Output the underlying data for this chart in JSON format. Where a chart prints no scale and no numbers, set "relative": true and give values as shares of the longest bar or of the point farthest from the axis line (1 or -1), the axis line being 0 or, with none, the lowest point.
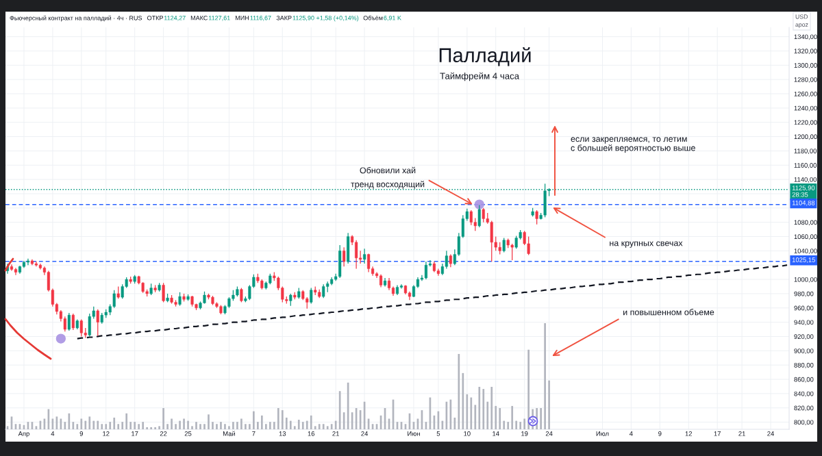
{
  "chart_data": [
    {
      "type": "candlestick",
      "title": "Палладий",
      "subtitle": "Таймфрейм 4 часа",
      "ylabel": "USD\napoz",
      "annotations": [
        "Фьючерсный контракт на палладий · 4ч · RUS",
        "ОТКР",
        "1124,27",
        "МАКС",
        "1127,61",
        "МИН",
        "1116,67",
        "ЗАКР",
        "1125,90 +1,58 (+0,14%)",
        "Объём",
        "6,91 K",
        {
          "text": "Обновили хай\nтренд восходящий",
          "y": 1105
        },
        "если закрепляемся, то летим\nс большей вероятностью выше",
        "на крупных свечах"
      ],
      "categories": [
        null,
        null,
        null,
        null,
        "Апр",
        null,
        null,
        null,
        null,
        null,
        null,
        "4",
        null,
        null,
        null,
        null,
        null,
        null,
        "9",
        null,
        null,
        null,
        null,
        null,
        "12",
        null,
        null,
        null,
        null,
        null,
        null,
        "17",
        null,
        null,
        null,
        null,
        null,
        null,
        "22",
        null,
        null,
        null,
        null,
        null,
        "25",
        null,
        null,
        null,
        null,
        null,
        null,
        null,
        null,
        null,
        "Май",
        null,
        null,
        null,
        null,
        null,
        "7",
        null,
        null,
        null,
        null,
        null,
        null,
        "13",
        null,
        null,
        null,
        null,
        null,
        null,
        "16",
        null,
        null,
        null,
        null,
        null,
        "21",
        null,
        null,
        null,
        null,
        null,
        null,
        "24",
        null,
        null,
        null,
        null,
        null,
        null,
        null,
        null,
        null,
        null,
        null,
        "Июн",
        null,
        null,
        null,
        null,
        null,
        "5",
        null,
        null,
        null,
        null,
        null,
        null,
        "10",
        null,
        null,
        null,
        null,
        null,
        null,
        "14",
        null,
        null,
        null,
        null,
        null,
        null,
        "19",
        null,
        null,
        null,
        null,
        null,
        "24",
        null,
        null,
        null,
        null,
        null,
        null,
        null,
        null,
        null,
        null,
        null,
        null,
        "Июл",
        null,
        null,
        null,
        null,
        null,
        null,
        "4",
        null,
        null,
        null,
        null,
        null,
        null,
        "9",
        null,
        null,
        null,
        null,
        null,
        null,
        "12",
        null,
        null,
        null,
        null,
        null,
        null,
        "17",
        null,
        null,
        null,
        null,
        null,
        "21",
        null,
        null,
        null,
        null,
        null,
        null,
        "24",
        null,
        null,
        null,
        null
      ],
      "ohlc": [
        [
          1012,
          1022,
          1008,
          1018
        ],
        [
          1018,
          1021,
          1012,
          1014
        ],
        [
          1014,
          1016,
          1006,
          1010
        ],
        [
          1010,
          1019,
          1008,
          1018
        ],
        [
          1018,
          1026,
          1016,
          1024
        ],
        [
          1024,
          1029,
          1020,
          1026
        ],
        [
          1026,
          1028,
          1020,
          1022
        ],
        [
          1022,
          1025,
          1018,
          1020
        ],
        [
          1020,
          1022,
          1014,
          1016
        ],
        [
          1016,
          1018,
          1006,
          1010
        ],
        [
          1010,
          1012,
          983,
          985
        ],
        [
          985,
          987,
          962,
          965
        ],
        [
          965,
          967,
          951,
          955
        ],
        [
          955,
          957,
          941,
          945
        ],
        [
          945,
          948,
          927,
          930
        ],
        [
          930,
          953,
          928,
          950
        ],
        [
          950,
          952,
          929,
          932
        ],
        [
          932,
          944,
          930,
          942
        ],
        [
          942,
          944,
          920,
          925
        ],
        [
          925,
          932,
          918,
          922
        ],
        [
          922,
          952,
          920,
          948
        ],
        [
          948,
          962,
          945,
          956
        ],
        [
          956,
          958,
          921,
          940
        ],
        [
          940,
          953,
          938,
          950
        ],
        [
          950,
          958,
          946,
          954
        ],
        [
          954,
          965,
          950,
          962
        ],
        [
          962,
          985,
          960,
          980
        ],
        [
          980,
          990,
          973,
          975
        ],
        [
          975,
          993,
          973,
          990
        ],
        [
          990,
          1003,
          988,
          1000
        ],
        [
          1000,
          1004,
          994,
          997
        ],
        [
          997,
          1006,
          994,
          1004
        ],
        [
          1004,
          1005,
          993,
          995
        ],
        [
          995,
          996,
          981,
          983
        ],
        [
          983,
          986,
          976,
          980
        ],
        [
          980,
          994,
          978,
          988
        ],
        [
          988,
          992,
          982,
          985
        ],
        [
          985,
          995,
          983,
          992
        ],
        [
          992,
          995,
          968,
          970
        ],
        [
          970,
          980,
          968,
          974
        ],
        [
          974,
          978,
          966,
          968
        ],
        [
          968,
          971,
          962,
          965
        ],
        [
          965,
          982,
          963,
          976
        ],
        [
          976,
          980,
          969,
          972
        ],
        [
          972,
          979,
          970,
          976
        ],
        [
          976,
          977,
          962,
          965
        ],
        [
          965,
          966,
          957,
          960
        ],
        [
          960,
          969,
          958,
          967
        ],
        [
          967,
          983,
          966,
          978
        ],
        [
          978,
          980,
          972,
          975
        ],
        [
          975,
          977,
          964,
          966
        ],
        [
          966,
          968,
          960,
          962
        ],
        [
          962,
          964,
          951,
          953
        ],
        [
          953,
          964,
          951,
          962
        ],
        [
          962,
          975,
          960,
          973
        ],
        [
          973,
          985,
          970,
          978
        ],
        [
          978,
          990,
          976,
          986
        ],
        [
          986,
          988,
          968,
          970
        ],
        [
          970,
          976,
          968,
          973
        ],
        [
          973,
          992,
          971,
          990
        ],
        [
          990,
          1007,
          988,
          1003
        ],
        [
          1003,
          1008,
          995,
          998
        ],
        [
          998,
          1000,
          986,
          988
        ],
        [
          988,
          997,
          986,
          995
        ],
        [
          995,
          1008,
          993,
          1005
        ],
        [
          1005,
          1010,
          998,
          1002
        ],
        [
          1002,
          1004,
          985,
          988
        ],
        [
          988,
          990,
          968,
          972
        ],
        [
          972,
          976,
          966,
          970
        ],
        [
          970,
          980,
          963,
          978
        ],
        [
          978,
          982,
          972,
          975
        ],
        [
          975,
          988,
          973,
          983
        ],
        [
          983,
          985,
          971,
          973
        ],
        [
          973,
          975,
          959,
          968
        ],
        [
          968,
          988,
          966,
          985
        ],
        [
          985,
          990,
          978,
          982
        ],
        [
          982,
          986,
          974,
          976
        ],
        [
          976,
          993,
          974,
          990
        ],
        [
          990,
          997,
          982,
          994
        ],
        [
          994,
          1003,
          992,
          1000
        ],
        [
          1000,
          1008,
          998,
          1004
        ],
        [
          1004,
          1048,
          1002,
          1040
        ],
        [
          1040,
          1045,
          1018,
          1025
        ],
        [
          1025,
          1065,
          1022,
          1060
        ],
        [
          1060,
          1062,
          1048,
          1052
        ],
        [
          1052,
          1055,
          1015,
          1030
        ],
        [
          1030,
          1040,
          1022,
          1028
        ],
        [
          1028,
          1043,
          1022,
          1035
        ],
        [
          1035,
          1036,
          1010,
          1015
        ],
        [
          1015,
          1018,
          1005,
          1008
        ],
        [
          1008,
          1010,
          1002,
          1005
        ],
        [
          1005,
          1007,
          989,
          992
        ],
        [
          992,
          1002,
          990,
          998
        ],
        [
          998,
          1002,
          985,
          988
        ],
        [
          988,
          990,
          977,
          980
        ],
        [
          980,
          992,
          978,
          989
        ],
        [
          989,
          993,
          987,
          991
        ],
        [
          991,
          992,
          979,
          981
        ],
        [
          981,
          983,
          971,
          976
        ],
        [
          976,
          992,
          975,
          990
        ],
        [
          990,
          1003,
          988,
          1000
        ],
        [
          1000,
          1006,
          998,
          1002
        ],
        [
          1002,
          1025,
          1000,
          1020
        ],
        [
          1020,
          1027,
          1018,
          1022
        ],
        [
          1022,
          1025,
          1010,
          1012
        ],
        [
          1012,
          1015,
          1005,
          1008
        ],
        [
          1008,
          1022,
          1006,
          1018
        ],
        [
          1018,
          1040,
          1015,
          1033
        ],
        [
          1033,
          1035,
          1017,
          1022
        ],
        [
          1022,
          1042,
          1020,
          1035
        ],
        [
          1035,
          1065,
          1033,
          1060
        ],
        [
          1060,
          1090,
          1058,
          1085
        ],
        [
          1085,
          1099,
          1082,
          1095
        ],
        [
          1095,
          1097,
          1076,
          1080
        ],
        [
          1080,
          1086,
          1068,
          1075
        ],
        [
          1075,
          1104,
          1073,
          1098
        ],
        [
          1098,
          1100,
          1080,
          1085
        ],
        [
          1085,
          1093,
          1078,
          1080
        ],
        [
          1080,
          1082,
          1025,
          1052
        ],
        [
          1052,
          1060,
          1040,
          1045
        ],
        [
          1045,
          1052,
          1035,
          1040
        ],
        [
          1040,
          1058,
          1038,
          1055
        ],
        [
          1055,
          1057,
          1044,
          1048
        ],
        [
          1048,
          1050,
          1027,
          1045
        ],
        [
          1045,
          1061,
          1043,
          1058
        ],
        [
          1058,
          1069,
          1056,
          1066
        ],
        [
          1066,
          1068,
          1048,
          1050
        ],
        [
          1050,
          1060,
          1034,
          1036
        ],
        [
          1090,
          1100,
          1088,
          1095
        ],
        [
          1095,
          1097,
          1077,
          1085
        ],
        [
          1085,
          1093,
          1084,
          1090
        ],
        [
          1090,
          1134,
          1087,
          1124
        ],
        [
          1124.27,
          1127.61,
          1116.67,
          1125.9
        ],
        null,
        null,
        null,
        null,
        null,
        null,
        null,
        null,
        null,
        null,
        null,
        null,
        null,
        null,
        null,
        null,
        null,
        null,
        null,
        null,
        null,
        null,
        null,
        null,
        null,
        null,
        null,
        null,
        null,
        null,
        null,
        null,
        null,
        null,
        null,
        null,
        null,
        null,
        null,
        null,
        null,
        null,
        null,
        null,
        null,
        null,
        null,
        null,
        null,
        null,
        null,
        null,
        null,
        null,
        null,
        null,
        null,
        null
      ],
      "colors": [
        "#089981",
        "#f23645",
        "#f23645",
        "#089981",
        "#089981",
        "#089981",
        "#f23645",
        "#f23645",
        "#f23645",
        "#f23645",
        "#f23645",
        "#f23645",
        "#f23645",
        "#f23645",
        "#f23645",
        "#089981",
        "#f23645",
        "#089981",
        "#f23645",
        "#f23645",
        "#089981",
        "#089981",
        "#f23645",
        "#089981",
        "#089981",
        "#089981",
        "#089981",
        "#f23645",
        "#089981",
        "#089981",
        "#f23645",
        "#089981",
        "#f23645",
        "#f23645",
        "#f23645",
        "#089981",
        "#f23645",
        "#089981",
        "#f23645",
        "#089981",
        "#f23645",
        "#f23645",
        "#089981",
        "#f23645",
        "#089981",
        "#f23645",
        "#f23645",
        "#089981",
        "#089981",
        "#f23645",
        "#f23645",
        "#f23645",
        "#f23645",
        "#089981",
        "#089981",
        "#089981",
        "#089981",
        "#f23645",
        "#089981",
        "#089981",
        "#089981",
        "#f23645",
        "#f23645",
        "#089981",
        "#089981",
        "#f23645",
        "#f23645",
        "#f23645",
        "#f23645",
        "#089981",
        "#f23645",
        "#089981",
        "#f23645",
        "#f23645",
        "#089981",
        "#f23645",
        "#f23645",
        "#089981",
        "#089981",
        "#089981",
        "#089981",
        "#089981",
        "#f23645",
        "#089981",
        "#f23645",
        "#f23645",
        "#f23645",
        "#089981",
        "#f23645",
        "#f23645",
        "#f23645",
        "#f23645",
        "#089981",
        "#f23645",
        "#f23645",
        "#089981",
        "#089981",
        "#f23645",
        "#f23645",
        "#089981",
        "#089981",
        "#089981",
        "#089981",
        "#089981",
        "#f23645",
        "#f23645",
        "#089981",
        "#089981",
        "#f23645",
        "#089981",
        "#089981",
        "#089981",
        "#089981",
        "#f23645",
        "#f23645",
        "#089981",
        "#f23645",
        "#f23645",
        "#f23645",
        "#f23645",
        "#f23645",
        "#089981",
        "#f23645",
        "#f23645",
        "#089981",
        "#089981",
        "#f23645",
        "#f23645",
        "#089981",
        "#f23645",
        "#089981",
        "#089981",
        "#089981",
        null,
        null,
        null,
        null,
        null,
        null,
        null,
        null,
        null,
        null,
        null,
        null,
        null,
        null,
        null,
        null,
        null,
        null,
        null,
        null,
        null,
        null,
        null,
        null,
        null,
        null,
        null,
        null,
        null,
        null,
        null,
        null,
        null,
        null,
        null,
        null,
        null,
        null,
        null,
        null,
        null,
        null,
        null,
        null,
        null,
        null,
        null,
        null,
        null,
        null,
        null,
        null,
        null,
        null,
        null,
        null,
        null,
        null
      ],
      "series": [
        {
          "type": "line",
          "color": "#131722",
          "line_style": "dashed",
          "values": [
            null,
            null,
            null,
            null,
            null,
            null,
            null,
            null,
            null,
            null,
            null,
            null,
            null,
            null,
            null,
            null,
            null,
            917,
            918,
            918,
            919,
            919,
            920,
            921,
            921,
            922,
            922,
            923,
            924,
            924,
            925,
            925,
            926,
            927,
            927,
            928,
            928,
            929,
            929,
            930,
            931,
            931,
            932,
            932,
            933,
            934,
            934,
            935,
            935,
            936,
            937,
            937,
            938,
            938,
            939,
            940,
            940,
            941,
            941,
            942,
            943,
            943,
            944,
            944,
            945,
            946,
            946,
            947,
            947,
            948,
            949,
            949,
            950,
            950,
            951,
            952,
            952,
            953,
            953,
            954,
            954,
            955,
            956,
            956,
            957,
            957,
            958,
            959,
            959,
            960,
            960,
            961,
            962,
            962,
            963,
            963,
            964,
            965,
            965,
            966,
            966,
            967,
            968,
            968,
            969,
            969,
            970,
            971,
            971,
            972,
            972,
            973,
            974,
            974,
            975,
            975,
            976,
            977,
            977,
            978,
            978,
            979,
            979,
            980,
            981,
            981,
            982,
            982,
            983,
            984,
            984,
            985,
            985,
            986,
            987,
            987,
            988,
            988,
            989,
            990,
            990,
            991,
            991,
            992,
            993,
            993,
            994,
            994,
            995,
            996,
            996,
            997,
            997,
            998,
            999,
            999,
            1000,
            1000,
            1001,
            1001,
            1002,
            1003,
            1003,
            1004,
            1004,
            1005,
            1006,
            1006,
            1007,
            1007,
            1008,
            1009,
            1009,
            1010,
            1010,
            1011,
            1012,
            1012,
            1013,
            1013,
            1014,
            1015,
            1015,
            1016,
            1016,
            1017,
            1018,
            1018,
            1019,
            1019,
            1020
          ]
        },
        {
          "type": "scatter",
          "color": "#a992e2",
          "marker": "circle",
          "values": [
            null,
            null,
            null,
            null,
            null,
            null,
            null,
            null,
            null,
            null,
            null,
            null,
            null,
            917,
            null,
            null,
            null,
            null,
            null,
            null,
            null,
            null,
            null,
            null,
            null,
            null,
            null,
            null,
            null,
            null,
            null,
            null,
            null,
            null,
            null,
            null,
            null,
            null,
            null,
            null,
            null,
            null,
            null,
            null,
            null,
            null,
            null,
            null,
            null,
            null,
            null,
            null,
            null,
            null,
            null,
            null,
            null,
            null,
            null,
            null,
            null,
            null,
            null,
            null,
            null,
            null,
            null,
            null,
            null,
            null,
            null,
            null,
            null,
            null,
            null,
            null,
            null,
            null,
            null,
            null,
            null,
            null,
            null,
            null,
            null,
            null,
            null,
            null,
            null,
            null,
            null,
            null,
            null,
            null,
            null,
            null,
            null,
            null,
            null,
            null,
            null,
            null,
            null,
            null,
            null,
            null,
            null,
            null,
            null,
            null,
            null,
            null,
            null,
            null,
            null,
            1105,
            null,
            null,
            null,
            null,
            null,
            null,
            null,
            null,
            null,
            null,
            null,
            null,
            null,
            null,
            null,
            null,
            null,
            null,
            null,
            null,
            null,
            null,
            null,
            null,
            null,
            null,
            null,
            null,
            null,
            null,
            null,
            null,
            null,
            null,
            null,
            null,
            null,
            null,
            null,
            null,
            null,
            null,
            null,
            null,
            null,
            null,
            null,
            null,
            null,
            null,
            null,
            null,
            null,
            null,
            null,
            null,
            null,
            null,
            null,
            null,
            null,
            null,
            null,
            null,
            null,
            null,
            null,
            null,
            null,
            null,
            null,
            null,
            null,
            null,
            null
          ]
        }
      ],
      "ref_lines": [
        {
          "axis": "y",
          "value": 1125.9,
          "label": "1125,90\n28:35",
          "color": "#089981",
          "line_style": "dotted"
        },
        {
          "axis": "y",
          "value": 1104.88,
          "label": "1104,88",
          "color": "#2962ff",
          "line_style": "dashed"
        },
        {
          "axis": "y",
          "value": 1025.15,
          "label": "1025,15",
          "color": "#2962ff",
          "line_style": "dashed"
        }
      ],
      "ylim": [
        790,
        1353
      ],
      "yticks": [
        {
          "value": 800,
          "label": "800,00"
        },
        {
          "value": 820,
          "label": "820,00"
        },
        {
          "value": 840,
          "label": "840,00"
        },
        {
          "value": 860,
          "label": "860,00"
        },
        {
          "value": 880,
          "label": "880,00"
        },
        {
          "value": 900,
          "label": "900,00"
        },
        {
          "value": 920,
          "label": "920,00"
        },
        {
          "value": 940,
          "label": "940,00"
        },
        {
          "value": 960,
          "label": "960,00"
        },
        {
          "value": 980,
          "label": "980,00"
        },
        {
          "value": 1000,
          "label": "1000,00"
        },
        {
          "value": 1020,
          "label": null
        },
        {
          "value": 1040,
          "label": "1040,00"
        },
        {
          "value": 1060,
          "label": "1060,00"
        },
        {
          "value": 1080,
          "label": "1080,00"
        },
        {
          "value": 1100,
          "label": null
        },
        {
          "value": 1120,
          "label": null
        },
        {
          "value": 1140,
          "label": "1140,00"
        },
        {
          "value": 1160,
          "label": "1160,00"
        },
        {
          "value": 1180,
          "label": "1180,00"
        },
        {
          "value": 1200,
          "label": "1200,00"
        },
        {
          "value": 1220,
          "label": "1220,00"
        },
        {
          "value": 1240,
          "label": "1240,00"
        },
        {
          "value": 1260,
          "label": "1260,00"
        },
        {
          "value": 1280,
          "label": "1280,00"
        },
        {
          "value": 1300,
          "label": "1300,00"
        },
        {
          "value": 1320,
          "label": "1320,00"
        },
        {
          "value": 1340,
          "label": "1340,00"
        }
      ],
      "grid": true
    },
    {
      "type": "bar",
      "relative": true,
      "color": "#b2b5be",
      "categories": [
        null,
        null,
        null,
        null,
        null,
        null,
        null,
        null,
        null,
        null,
        null,
        null,
        null,
        null,
        null,
        null,
        null,
        null,
        null,
        null,
        null,
        null,
        null,
        null,
        null,
        null,
        null,
        null,
        null,
        null,
        null,
        null,
        null,
        null,
        null,
        null,
        null,
        null,
        null,
        null,
        null,
        null,
        null,
        null,
        null,
        null,
        null,
        null,
        null,
        null,
        null,
        null,
        null,
        null,
        null,
        null,
        null,
        null,
        null,
        null,
        null,
        null,
        null,
        null,
        null,
        null,
        null,
        null,
        null,
        null,
        null,
        null,
        null,
        null,
        null,
        null,
        null,
        null,
        null,
        null,
        null,
        null,
        null,
        null,
        null,
        null,
        null,
        null,
        null,
        null,
        null,
        null,
        null,
        null,
        null,
        null,
        null,
        null,
        null,
        null,
        null,
        null,
        null,
        null,
        null,
        null,
        null,
        null,
        null,
        null,
        null,
        null,
        null,
        null,
        null,
        null,
        null,
        null,
        null,
        null,
        null,
        null,
        null,
        null,
        null,
        null,
        null,
        null,
        null,
        null,
        null,
        null,
        null,
        null,
        null,
        null,
        null,
        null,
        null,
        null,
        null,
        null,
        null,
        null,
        null,
        null,
        null,
        null,
        null,
        null,
        null,
        null,
        null,
        null,
        null,
        null,
        null,
        null,
        null,
        null,
        null,
        null,
        null,
        null,
        null,
        null,
        null,
        null,
        null,
        null,
        null,
        null,
        null,
        null,
        null,
        null,
        null,
        null,
        null,
        null,
        null,
        null,
        null,
        null,
        null,
        null,
        null,
        null,
        null,
        null,
        null
      ],
      "values": [
        0.03,
        0.12,
        0.05,
        0.05,
        0.04,
        0.07,
        0.07,
        0.03,
        0.08,
        0.1,
        0.19,
        0.1,
        0.12,
        0.1,
        0.07,
        0.15,
        0.07,
        0.05,
        0.1,
        0.08,
        0.12,
        0.08,
        0.08,
        0.05,
        0.05,
        0.07,
        0.11,
        0.05,
        0.07,
        0.15,
        0.07,
        0.07,
        0.05,
        0.07,
        0.02,
        0.02,
        0.02,
        0.03,
        0.2,
        0.05,
        0.1,
        0.05,
        0.08,
        0.1,
        0.08,
        0.03,
        0.07,
        0.05,
        0.05,
        0.14,
        0.07,
        0.05,
        0.07,
        0.05,
        0.03,
        0.07,
        0.07,
        0.1,
        0.05,
        0.05,
        0.17,
        0.07,
        0.13,
        0.05,
        0.07,
        0.07,
        0.2,
        0.18,
        0.11,
        0.08,
        0.03,
        0.09,
        0.07,
        0.08,
        0.13,
        0.03,
        0.05,
        0.05,
        0.03,
        0.05,
        0.08,
        0.36,
        0.16,
        0.44,
        0.16,
        0.2,
        0.18,
        0.26,
        0.1,
        0.05,
        0.05,
        0.13,
        0.2,
        0.1,
        0.28,
        0.07,
        0.07,
        0.05,
        0.15,
        0.07,
        0.1,
        0.18,
        0.07,
        0.3,
        0.13,
        0.17,
        0.08,
        0.26,
        0.28,
        0.11,
        0.71,
        0.53,
        0.33,
        0.3,
        0.23,
        0.4,
        0.38,
        0.26,
        0.4,
        0.22,
        0.2,
        0.08,
        0.07,
        0.22,
        0.08,
        0.07,
        0.1,
        0.75,
        0.19,
        0.2,
        0.2,
        1,
        0.46,
        null,
        null,
        null,
        null,
        null,
        null,
        null,
        null,
        null,
        null,
        null,
        null,
        null,
        null,
        null,
        null,
        null,
        null,
        null,
        null,
        null,
        null,
        null,
        null,
        null,
        null,
        null,
        null,
        null,
        null,
        null,
        null,
        null,
        null,
        null,
        null,
        null,
        null,
        null,
        null,
        null,
        null,
        null,
        null,
        null,
        null,
        null,
        null,
        null,
        null,
        null,
        null,
        null,
        null,
        null,
        null,
        null,
        null
      ],
      "annotations": [
        "и повышенном объеме"
      ]
    }
  ]
}
